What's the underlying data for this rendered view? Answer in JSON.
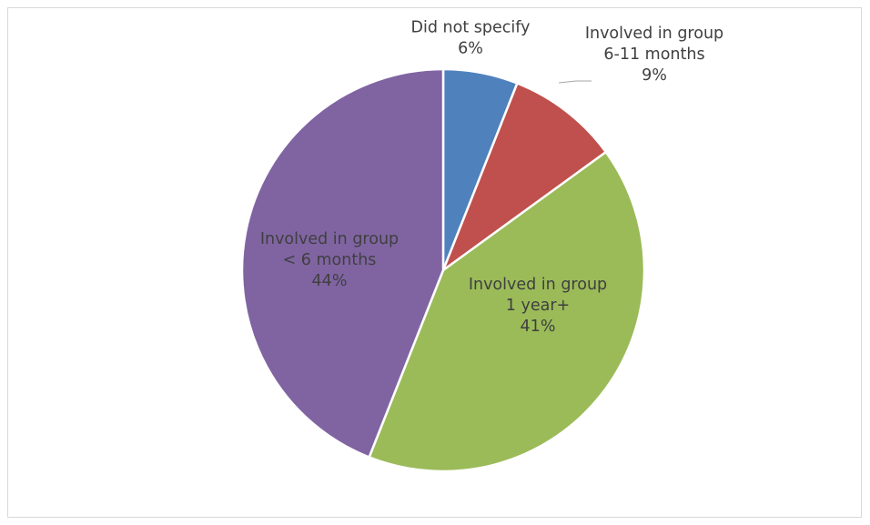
{
  "chart_data": {
    "type": "pie",
    "title": "",
    "legend": "none",
    "slices": [
      {
        "lines": [
          "Did not specify"
        ],
        "pct_label": "6%",
        "value": 6,
        "color": "#4f81bd"
      },
      {
        "lines": [
          "Involved in group",
          "6-11 months"
        ],
        "pct_label": "9%",
        "value": 9,
        "color": "#c0504d"
      },
      {
        "lines": [
          "Involved in group",
          "1 year+"
        ],
        "pct_label": "41%",
        "value": 41,
        "color": "#9bbb59"
      },
      {
        "lines": [
          "Involved in group",
          "< 6 months"
        ],
        "pct_label": "44%",
        "value": 44,
        "color": "#8064a2"
      }
    ],
    "slice_border_color": "#ffffff",
    "leader_line_color": "#a6a6a6"
  }
}
